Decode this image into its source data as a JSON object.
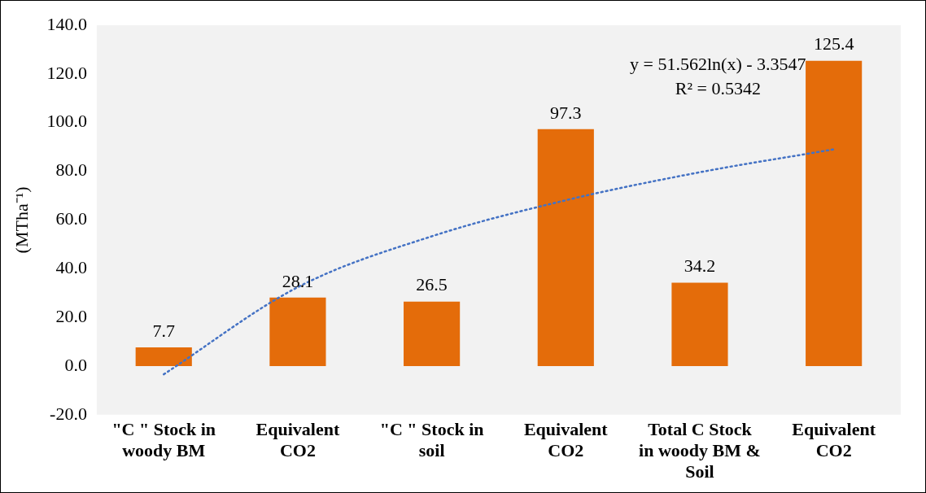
{
  "chart_data": {
    "type": "bar",
    "categories": [
      "\"C \" Stock in woody BM",
      "Equivalent CO2",
      "\"C \" Stock in soil",
      "Equivalent CO2",
      "Total C Stock in woody BM & Soil",
      "Equivalent CO2"
    ],
    "series": [
      {
        "color": "#e46c0a",
        "values": [
          7.7,
          28.1,
          26.5,
          97.3,
          34.2,
          125.4
        ],
        "value_labels": [
          "7.7",
          "28.1",
          "26.5",
          "97.3",
          "34.2",
          "125.4"
        ]
      },
      {
        "type": "line",
        "color": "#4472c4",
        "line_style": "dotted",
        "marker": "none",
        "values": [
          -3.4,
          32.4,
          53.3,
          68.1,
          79.6,
          89.0
        ]
      }
    ],
    "ylabel": "(MTha⁻¹)",
    "ylim": [
      -20,
      140
    ],
    "yticks": [
      {
        "value": -20,
        "label": "-20.0"
      },
      {
        "value": 0,
        "label": "0.0"
      },
      {
        "value": 20,
        "label": "20.0"
      },
      {
        "value": 40,
        "label": "40.0"
      },
      {
        "value": 60,
        "label": "60.0"
      },
      {
        "value": 80,
        "label": "80.0"
      },
      {
        "value": 100,
        "label": "100.0"
      },
      {
        "value": 120,
        "label": "120.0"
      },
      {
        "value": 140,
        "label": "140.0"
      }
    ],
    "annotations": [
      "y = 51.562ln(x) - 3.3547",
      "R² = 0.5342"
    ],
    "grid": false,
    "legend": false
  }
}
